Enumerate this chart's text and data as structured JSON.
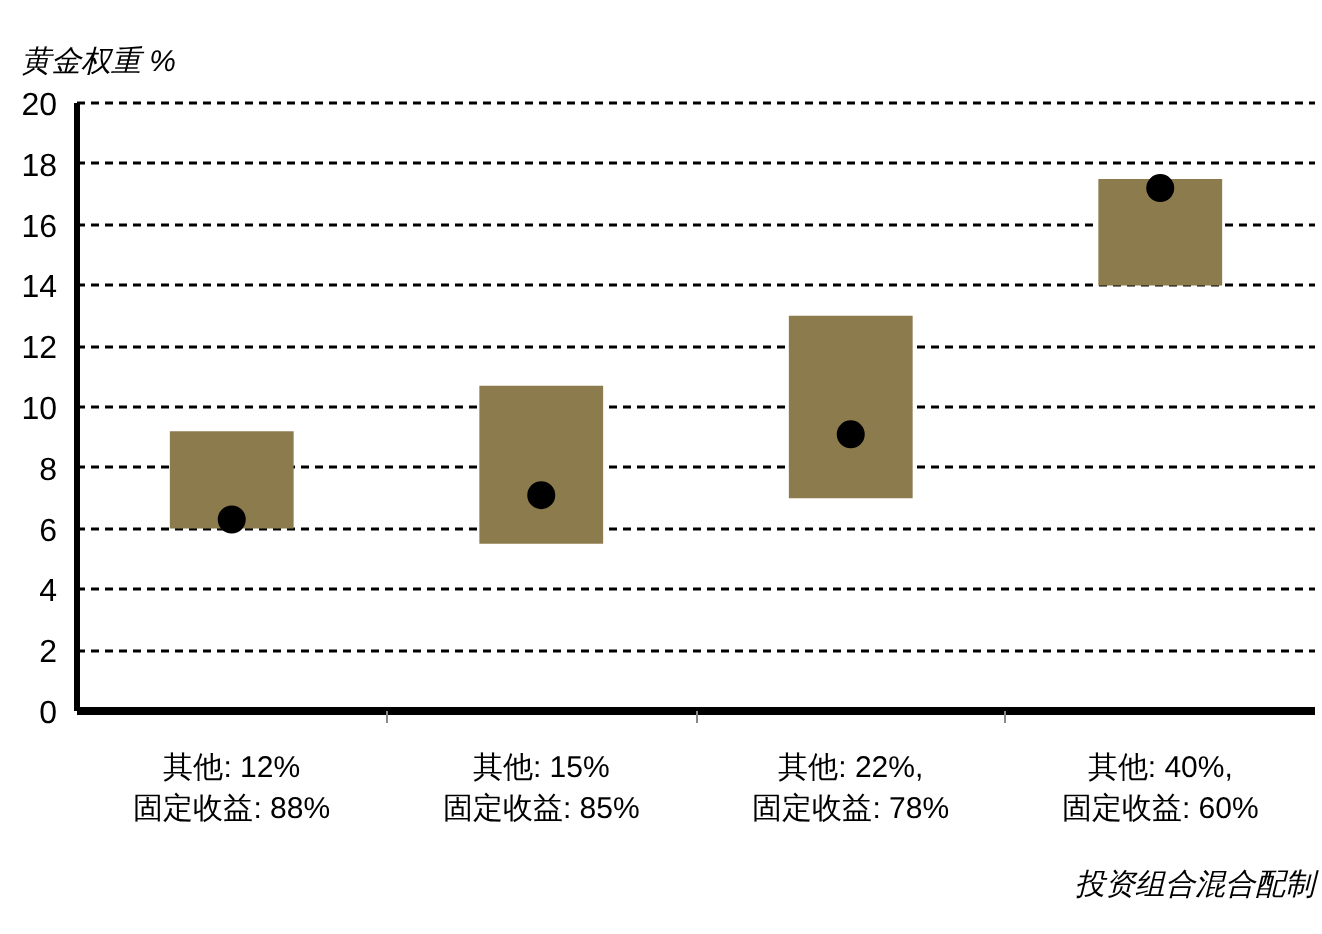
{
  "chart_data": {
    "type": "bar",
    "ylabel": "黄金权重 %",
    "xlabel": "投资组合混合配制",
    "categories": [
      "其他: 12%\n固定收益: 88%",
      "其他: 15%\n固定收益: 85%",
      "其他: 22%,\n固定收益: 78%",
      "其他: 40%,\n固定收益: 60%"
    ],
    "series": [
      {
        "color": "#8c7b4c",
        "base": [
          6.0,
          5.5,
          7.0,
          14.0
        ],
        "values": [
          3.2,
          5.2,
          6.0,
          3.5
        ]
      },
      {
        "type": "scatter",
        "color": "#000000",
        "marker": "circle",
        "values": [
          6.3,
          7.1,
          9.1,
          17.2
        ]
      }
    ],
    "ylim": [
      0,
      20
    ],
    "yticks": [
      0,
      2,
      4,
      6,
      8,
      10,
      12,
      14,
      16,
      18,
      20
    ],
    "grid": "y"
  }
}
